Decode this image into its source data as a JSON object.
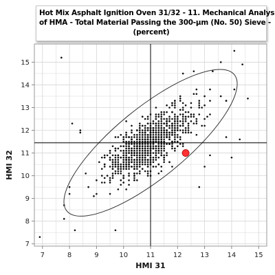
{
  "chart_data": {
    "type": "scatter",
    "title_lines": [
      "Hot Mix Asphalt Ignition Oven 31/32 - 11. Mechanical Analysis",
      "of HMA - Total Material Passing the 300-µm (No. 50) Sieve -",
      "(percent)"
    ],
    "xlabel": "HMI 31",
    "ylabel": "HMI 32",
    "xlim": [
      6.7,
      15.3
    ],
    "ylim": [
      6.9,
      15.8
    ],
    "xticks": [
      "7",
      "8",
      "9",
      "10",
      "11",
      "12",
      "13",
      "14",
      "15"
    ],
    "yticks": [
      "7",
      "8",
      "9",
      "10",
      "11",
      "12",
      "13",
      "14",
      "15"
    ],
    "grid": true,
    "crosshair": {
      "x": 11.0,
      "y": 11.45
    },
    "ellipse": {
      "cx": 11.0,
      "cy": 11.45,
      "major_end_x": 14.1,
      "major_end_y": 14.45,
      "minor_half": 1.3
    },
    "highlight_point": {
      "x": 12.3,
      "y": 11.0,
      "color": "#ff3333"
    },
    "outliers": [
      [
        6.9,
        7.3
      ],
      [
        7.7,
        15.2
      ],
      [
        7.8,
        8.7
      ],
      [
        7.8,
        8.1
      ],
      [
        8.2,
        7.6
      ],
      [
        8.0,
        9.2
      ],
      [
        8.0,
        9.5
      ],
      [
        8.1,
        12.3
      ],
      [
        8.4,
        12.0
      ],
      [
        8.4,
        11.9
      ],
      [
        9.7,
        7.6
      ],
      [
        12.8,
        9.5
      ],
      [
        13.0,
        10.4
      ],
      [
        14.6,
        13.4
      ],
      [
        14.1,
        15.5
      ],
      [
        14.3,
        11.6
      ],
      [
        14.0,
        10.8
      ],
      [
        13.2,
        10.9
      ],
      [
        13.8,
        11.7
      ],
      [
        14.4,
        14.9
      ],
      [
        14.1,
        13.8
      ],
      [
        13.3,
        14.6
      ],
      [
        12.6,
        14.6
      ],
      [
        12.2,
        14.5
      ],
      [
        13.6,
        15.0
      ]
    ],
    "cloud": {
      "count": 1000,
      "seed": 7,
      "mean": [
        11.0,
        11.45
      ],
      "sd_major": 1.05,
      "sd_minor": 0.42,
      "angle_deg": 44
    },
    "colors": {
      "points": "#111111",
      "highlight": "#ff3333",
      "grid": "#d6d6d6",
      "axis": "#888888",
      "crosshair": "#000000"
    }
  }
}
